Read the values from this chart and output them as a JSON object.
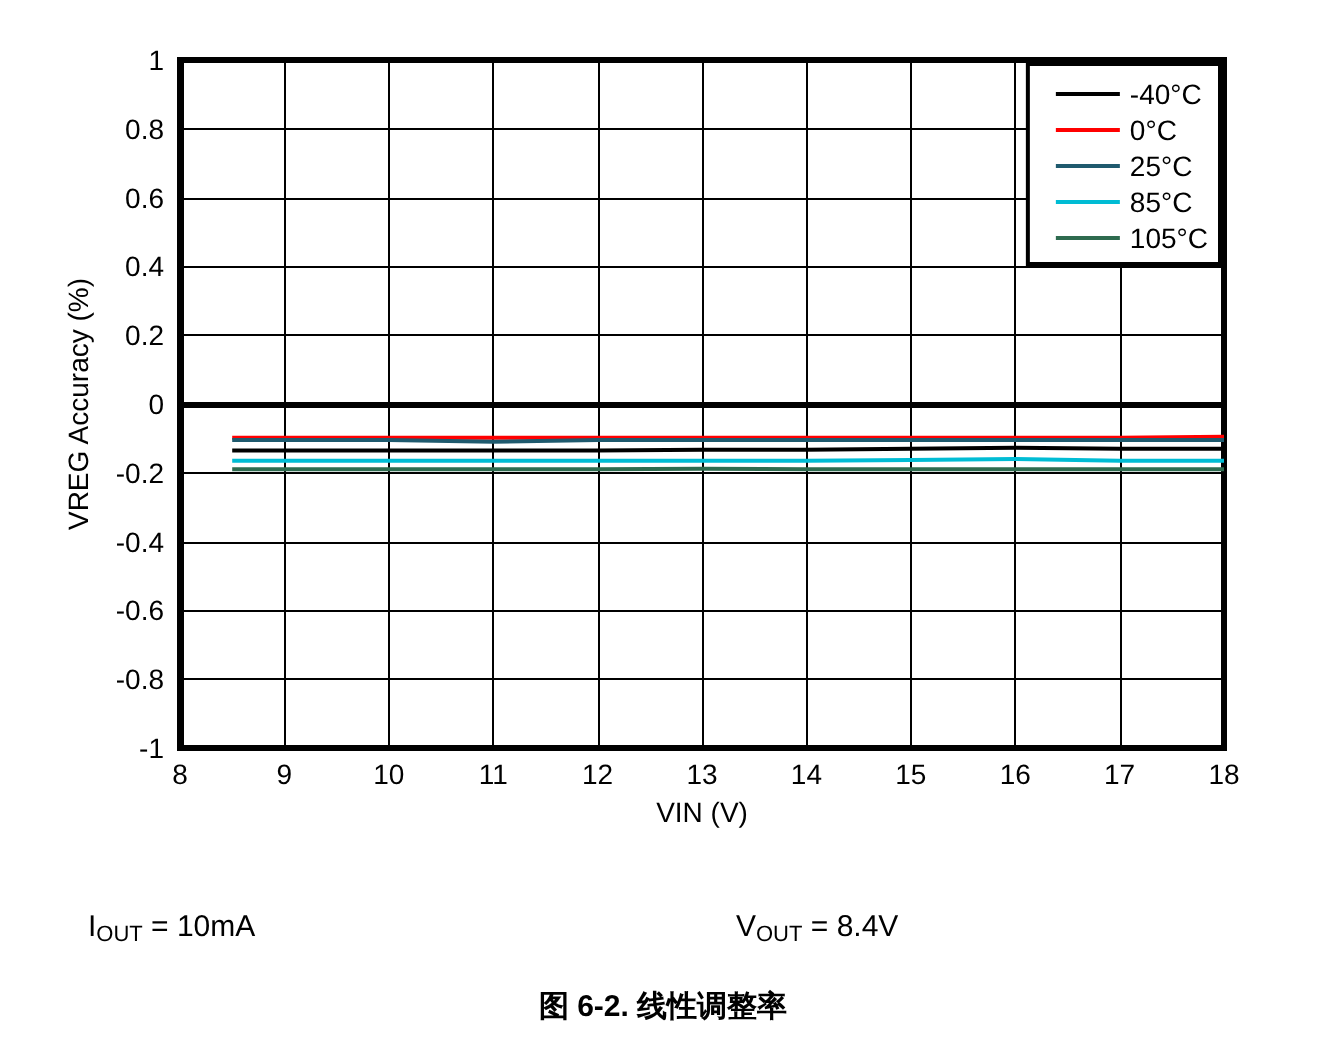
{
  "chart_data": {
    "type": "line",
    "xlabel": "VIN (V)",
    "ylabel": "VREG Accuracy (%)",
    "x": [
      8.5,
      9,
      10,
      11,
      12,
      13,
      14,
      15,
      16,
      17,
      18
    ],
    "series": [
      {
        "name": "-40°C",
        "color": "#000000",
        "values": [
          -0.135,
          -0.135,
          -0.135,
          -0.135,
          -0.135,
          -0.133,
          -0.133,
          -0.13,
          -0.127,
          -0.13,
          -0.13
        ]
      },
      {
        "name": "0°C",
        "color": "#ff0000",
        "values": [
          -0.098,
          -0.098,
          -0.098,
          -0.098,
          -0.098,
          -0.098,
          -0.098,
          -0.098,
          -0.098,
          -0.098,
          -0.095
        ]
      },
      {
        "name": "25°C",
        "color": "#1f5a6e",
        "values": [
          -0.105,
          -0.105,
          -0.105,
          -0.11,
          -0.105,
          -0.105,
          -0.105,
          -0.105,
          -0.105,
          -0.105,
          -0.105
        ]
      },
      {
        "name": "85°C",
        "color": "#00bcd4",
        "values": [
          -0.165,
          -0.165,
          -0.165,
          -0.165,
          -0.165,
          -0.165,
          -0.165,
          -0.163,
          -0.16,
          -0.165,
          -0.165
        ]
      },
      {
        "name": "105°C",
        "color": "#2e6b4f",
        "values": [
          -0.19,
          -0.19,
          -0.19,
          -0.19,
          -0.19,
          -0.188,
          -0.19,
          -0.19,
          -0.19,
          -0.19,
          -0.19
        ]
      }
    ],
    "xlim": [
      8,
      18
    ],
    "xticks": [
      8,
      9,
      10,
      11,
      12,
      13,
      14,
      15,
      16,
      17,
      18
    ],
    "ylim": [
      -1,
      1
    ],
    "yticks": [
      -1,
      -0.8,
      -0.6,
      -0.4,
      -0.2,
      0,
      0.2,
      0.4,
      0.6,
      0.8,
      1
    ],
    "grid": true,
    "legend": "top right",
    "marker": "none",
    "line_style": "solid",
    "annotations": [
      "I$_{OUT}$ = 10mA",
      "V$_{OUT}$ = 8.4V",
      "图 6-2. 线性调整率"
    ]
  }
}
